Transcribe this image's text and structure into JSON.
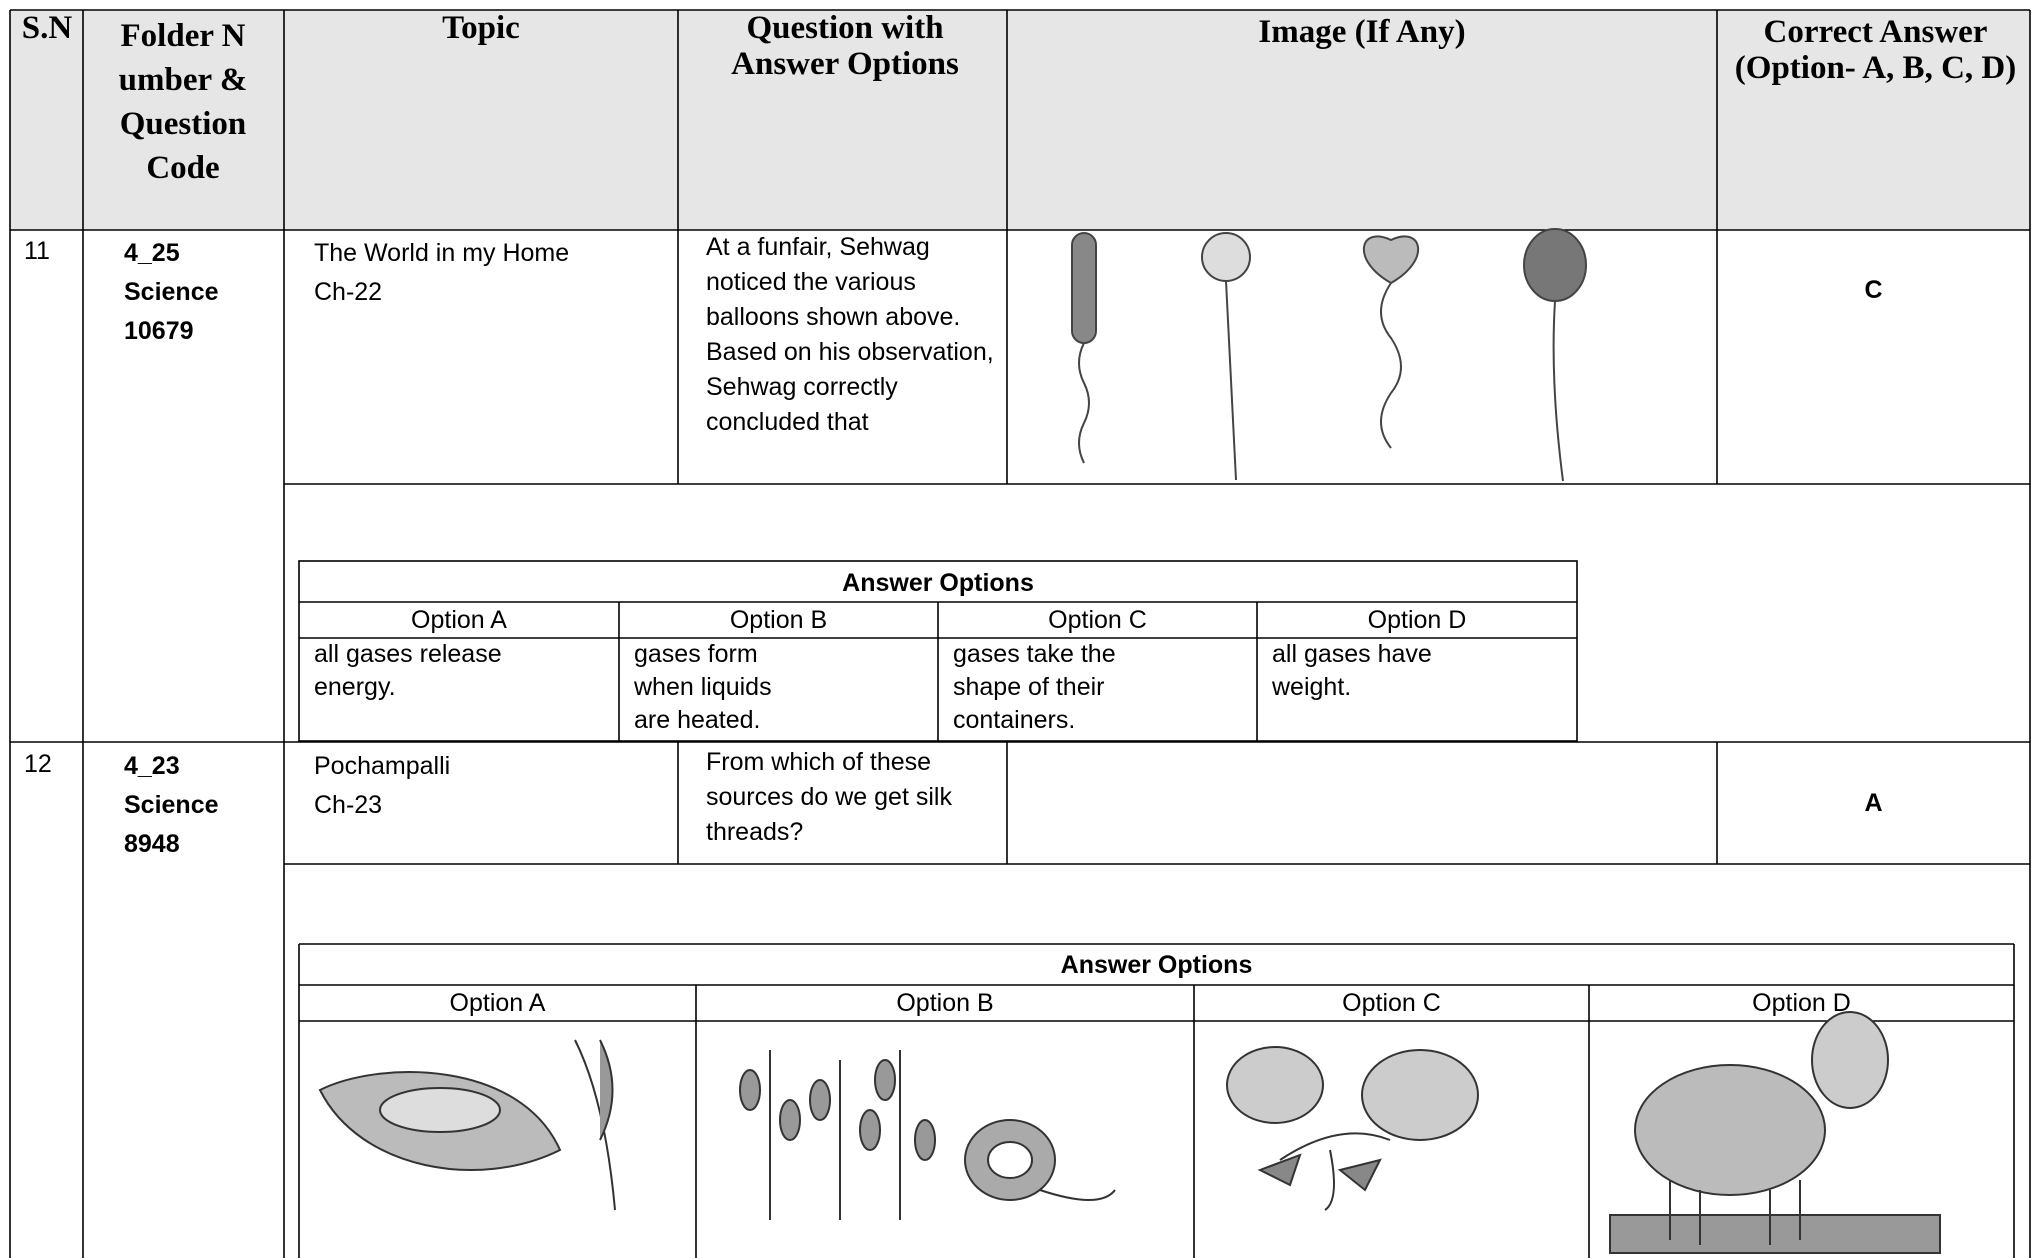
{
  "table": {
    "headers": [
      "S.N",
      "Folder Number & Question Code",
      "Topic",
      "Question with Answer Options",
      "Image (If Any)",
      "Correct Answer (Option- A, B, C, D)"
    ],
    "rows": [
      {
        "sn": "11",
        "code": [
          "4_25",
          "Science",
          "10679"
        ],
        "topic": [
          "The World in my Home",
          "Ch-22"
        ],
        "question": "At a funfair, Sehwag noticed the various balloons shown above. Based on his observation, Sehwag correctly concluded that",
        "answer": "C",
        "answer_options": {
          "title": "Answer Options",
          "labels": [
            "Option A",
            "Option B",
            "Option C",
            "Option D"
          ],
          "texts": [
            "all gases release energy.",
            "gases form when liquids are heated.",
            "gases take the shape of their containers.",
            "all gases have weight."
          ]
        }
      },
      {
        "sn": "12",
        "code": [
          "4_23",
          "Science",
          "8948"
        ],
        "topic": [
          "Pochampalli",
          "Ch-23"
        ],
        "question": "From which of these sources do we get silk threads?",
        "answer": "A",
        "answer_options": {
          "title": "Answer Options",
          "labels": [
            "Option A",
            "Option B",
            "Option C",
            "Option D"
          ]
        }
      }
    ]
  }
}
